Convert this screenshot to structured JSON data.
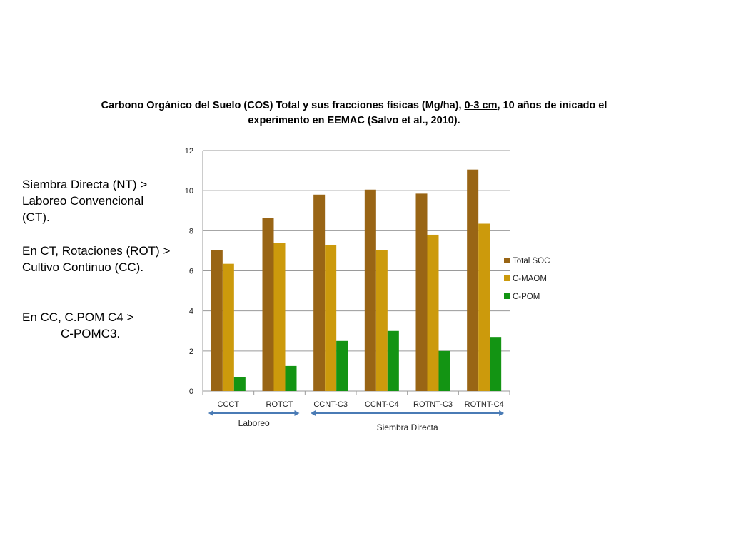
{
  "title": {
    "part1": "Carbono Orgánico del Suelo (COS) Total y sus fracciones  físicas (Mg/ha), ",
    "underlined": "0-3 cm",
    "part2": ", 10 años de inicado el",
    "line2": "experimento en EEMAC (Salvo et al., 2010)."
  },
  "side_notes": {
    "p1_l1": "Siembra Directa (NT) >",
    "p1_l2": "Laboreo Convencional",
    "p1_l3": "(CT).",
    "p2_l1": "En CT, Rotaciones (ROT) >",
    "p2_l2": "Cultivo Continuo (CC).",
    "p3_l1": "En CC, C.POM C4 >",
    "p3_l2": "C-POMC3."
  },
  "colors": {
    "total_soc": "#996515",
    "c_maom": "#CC9A0C",
    "c_pom": "#139413",
    "grid": "#9a9a9a",
    "arrow": "#4a7bb5"
  },
  "chart_data": {
    "type": "bar",
    "categories": [
      "CCCT",
      "ROTCT",
      "CCNT-C3",
      "CCNT-C4",
      "ROTNT-C3",
      "ROTNT-C4"
    ],
    "series": [
      {
        "name": "Total SOC",
        "values": [
          7.05,
          8.65,
          9.8,
          10.05,
          9.85,
          11.05
        ]
      },
      {
        "name": "C-MAOM",
        "values": [
          6.35,
          7.4,
          7.3,
          7.05,
          7.8,
          8.35
        ]
      },
      {
        "name": "C-POM",
        "values": [
          0.7,
          1.25,
          2.5,
          3.0,
          2.0,
          2.7
        ]
      }
    ],
    "ylim": [
      0,
      12
    ],
    "yticks": [
      0,
      2,
      4,
      6,
      8,
      10,
      12
    ],
    "grid": true,
    "legend": "right",
    "groups": [
      {
        "label": "Laboreo",
        "from": "CCCT",
        "to": "ROTCT"
      },
      {
        "label": "Siembra Directa",
        "from": "CCNT-C3",
        "to": "ROTNT-C4"
      }
    ]
  }
}
